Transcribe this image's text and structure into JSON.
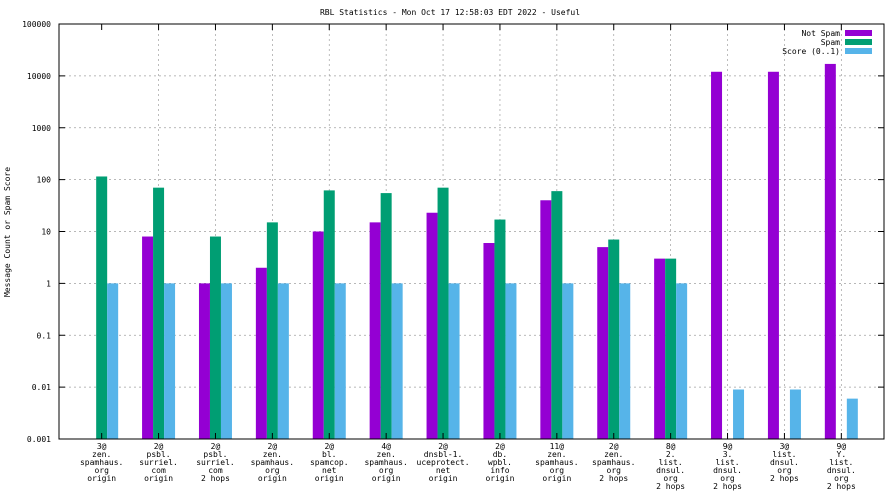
{
  "chart_data": {
    "type": "bar",
    "title": "RBL Statistics - Mon Oct 17 12:58:03 EDT 2022 - Useful",
    "xlabel": "",
    "ylabel": "Message Count or Spam Score",
    "yscale": "log",
    "ylim": [
      0.001,
      100000
    ],
    "yticks": [
      {
        "value": 0.001,
        "label": "0.001"
      },
      {
        "value": 0.01,
        "label": "0.01"
      },
      {
        "value": 0.1,
        "label": "0.1"
      },
      {
        "value": 1,
        "label": "1"
      },
      {
        "value": 10,
        "label": "10"
      },
      {
        "value": 100,
        "label": "100"
      },
      {
        "value": 1000,
        "label": "1000"
      },
      {
        "value": 10000,
        "label": "10000"
      },
      {
        "value": 100000,
        "label": "100000"
      }
    ],
    "grid": true,
    "legend_position": "top-right",
    "categories": [
      [
        "3@",
        "zen.",
        "spamhaus.",
        "org",
        "origin"
      ],
      [
        "2@",
        "psbl.",
        "surriel.",
        "com",
        "origin"
      ],
      [
        "2@",
        "psbl.",
        "surriel.",
        "com",
        "2 hops"
      ],
      [
        "2@",
        "zen.",
        "spamhaus.",
        "org",
        "origin"
      ],
      [
        "2@",
        "bl.",
        "spamcop.",
        "net",
        "origin"
      ],
      [
        "4@",
        "zen.",
        "spamhaus.",
        "org",
        "origin"
      ],
      [
        "2@",
        "dnsbl-1.",
        "uceprotect.",
        "net",
        "origin"
      ],
      [
        "2@",
        "db.",
        "wpbl.",
        "info",
        "origin"
      ],
      [
        "11@",
        "zen.",
        "spamhaus.",
        "org",
        "origin"
      ],
      [
        "2@",
        "zen.",
        "spamhaus.",
        "org",
        "2 hops"
      ],
      [
        "8@",
        "2.",
        "list.",
        "dnsul.",
        "org",
        "2 hops"
      ],
      [
        "9@",
        "3.",
        "list.",
        "dnsul.",
        "org",
        "2 hops"
      ],
      [
        "3@",
        "list.",
        "dnsul.",
        "org",
        "2 hops"
      ],
      [
        "9@",
        "Y.",
        "list.",
        "dnsul.",
        "org",
        "2 hops"
      ]
    ],
    "series": [
      {
        "name": "Not Spam",
        "color": "#9400d3",
        "values": [
          null,
          8,
          1,
          2,
          10,
          15,
          23,
          6,
          40,
          5,
          3,
          12000,
          12000,
          17000
        ]
      },
      {
        "name": "Spam",
        "color": "#009e73",
        "values": [
          115,
          70,
          8,
          15,
          62,
          55,
          70,
          17,
          60,
          7,
          3,
          null,
          null,
          null
        ]
      },
      {
        "name": "Score (0..1)",
        "color": "#56b4e9",
        "values": [
          1,
          1,
          1,
          1,
          1,
          1,
          1,
          1,
          1,
          1,
          1,
          0.009,
          0.009,
          0.006
        ]
      }
    ]
  }
}
